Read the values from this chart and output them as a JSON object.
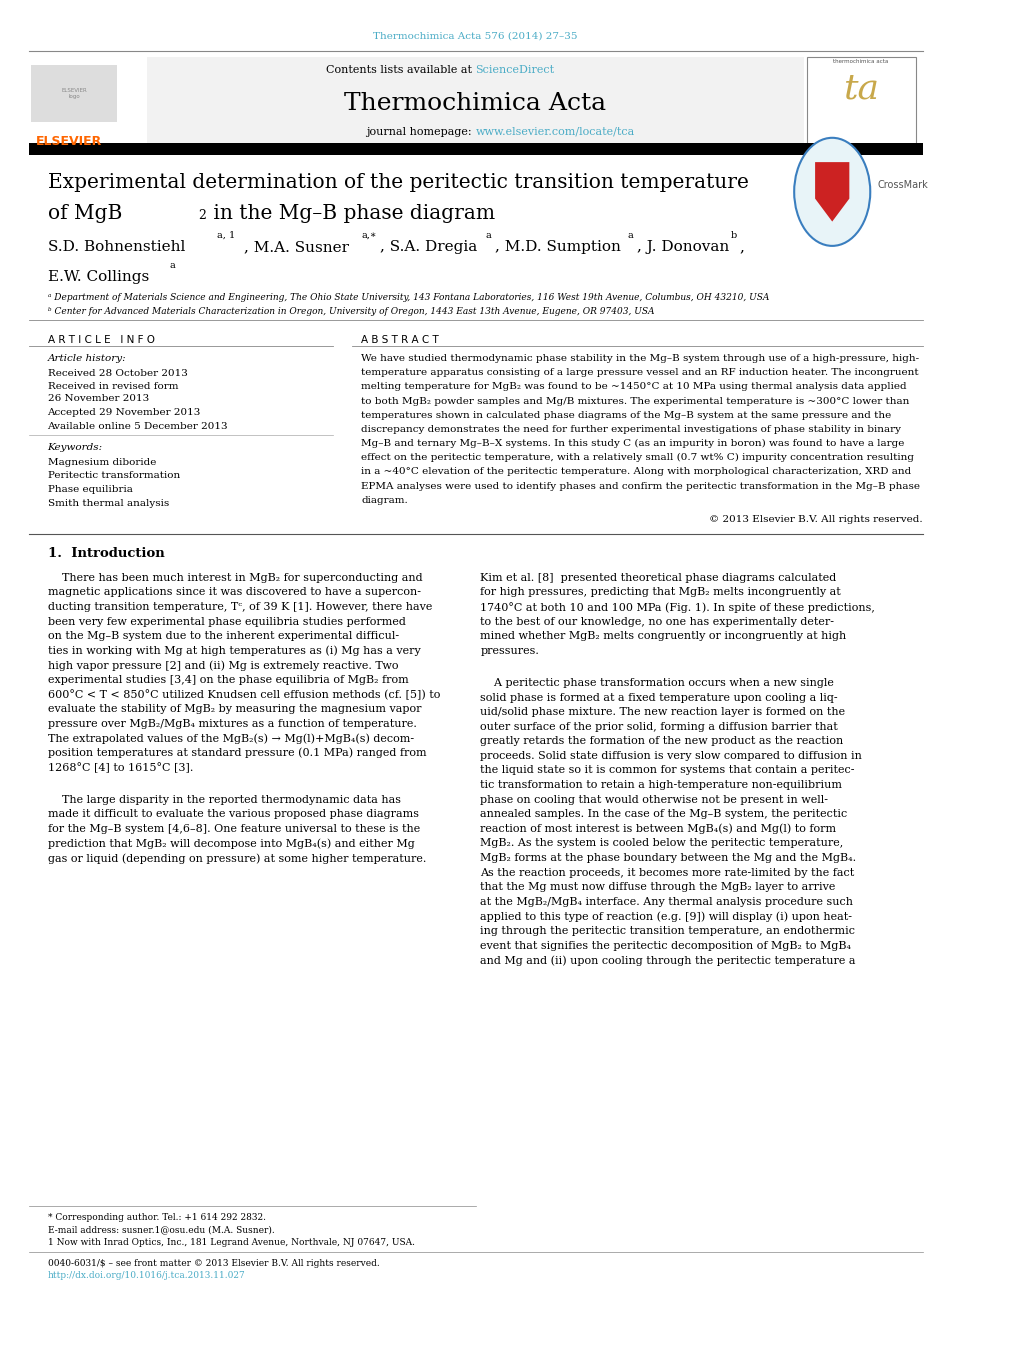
{
  "page_width": 10.2,
  "page_height": 13.51,
  "bg_color": "#ffffff",
  "top_url": "Thermochimica Acta 576 (2014) 27–35",
  "top_url_color": "#4BACC6",
  "journal_name": "Thermochimica Acta",
  "contents_text": "Contents lists available at ",
  "sciencedirect_text": "ScienceDirect",
  "sciencedirect_color": "#4BACC6",
  "journal_homepage": "journal homepage: ",
  "homepage_url": "www.elsevier.com/locate/tca",
  "homepage_url_color": "#4BACC6",
  "elsevier_color": "#FF6600",
  "header_bg": "#F2F2F2",
  "article_title_line1": "Experimental determination of the peritectic transition temperature",
  "article_title_line2a": "of MgB",
  "article_title_line2b": "2",
  "article_title_line2c": " in the Mg–B phase diagram",
  "affil_a": "ᵃ Department of Materials Science and Engineering, The Ohio State University, 143 Fontana Laboratories, 116 West 19th Avenue, Columbus, OH 43210, USA",
  "affil_b": "ᵇ Center for Advanced Materials Characterization in Oregon, University of Oregon, 1443 East 13th Avenue, Eugene, OR 97403, USA",
  "article_info_header": "A R T I C L E   I N F O",
  "abstract_header": "A B S T R A C T",
  "article_history_label": "Article history:",
  "received1": "Received 28 October 2013",
  "received2": "Received in revised form",
  "received2b": "26 November 2013",
  "accepted": "Accepted 29 November 2013",
  "available": "Available online 5 December 2013",
  "keywords_label": "Keywords:",
  "keyword1": "Magnesium diboride",
  "keyword2": "Peritectic transformation",
  "keyword3": "Phase equilibria",
  "keyword4": "Smith thermal analysis",
  "copyright": "© 2013 Elsevier B.V. All rights reserved.",
  "intro_header": "1.  Introduction",
  "footer_note1": "* Corresponding author. Tel.: +1 614 292 2832.",
  "footer_note2": "E-mail address: susner.1@osu.edu (M.A. Susner).",
  "footer_note3": "1 Now with Inrad Optics, Inc., 181 Legrand Avenue, Northvale, NJ 07647, USA.",
  "footer_issn": "0040-6031/$ – see front matter © 2013 Elsevier B.V. All rights reserved.",
  "footer_doi": "http://dx.doi.org/10.1016/j.tca.2013.11.027",
  "footer_doi_color": "#4BACC6",
  "link_color": "#4BACC6"
}
